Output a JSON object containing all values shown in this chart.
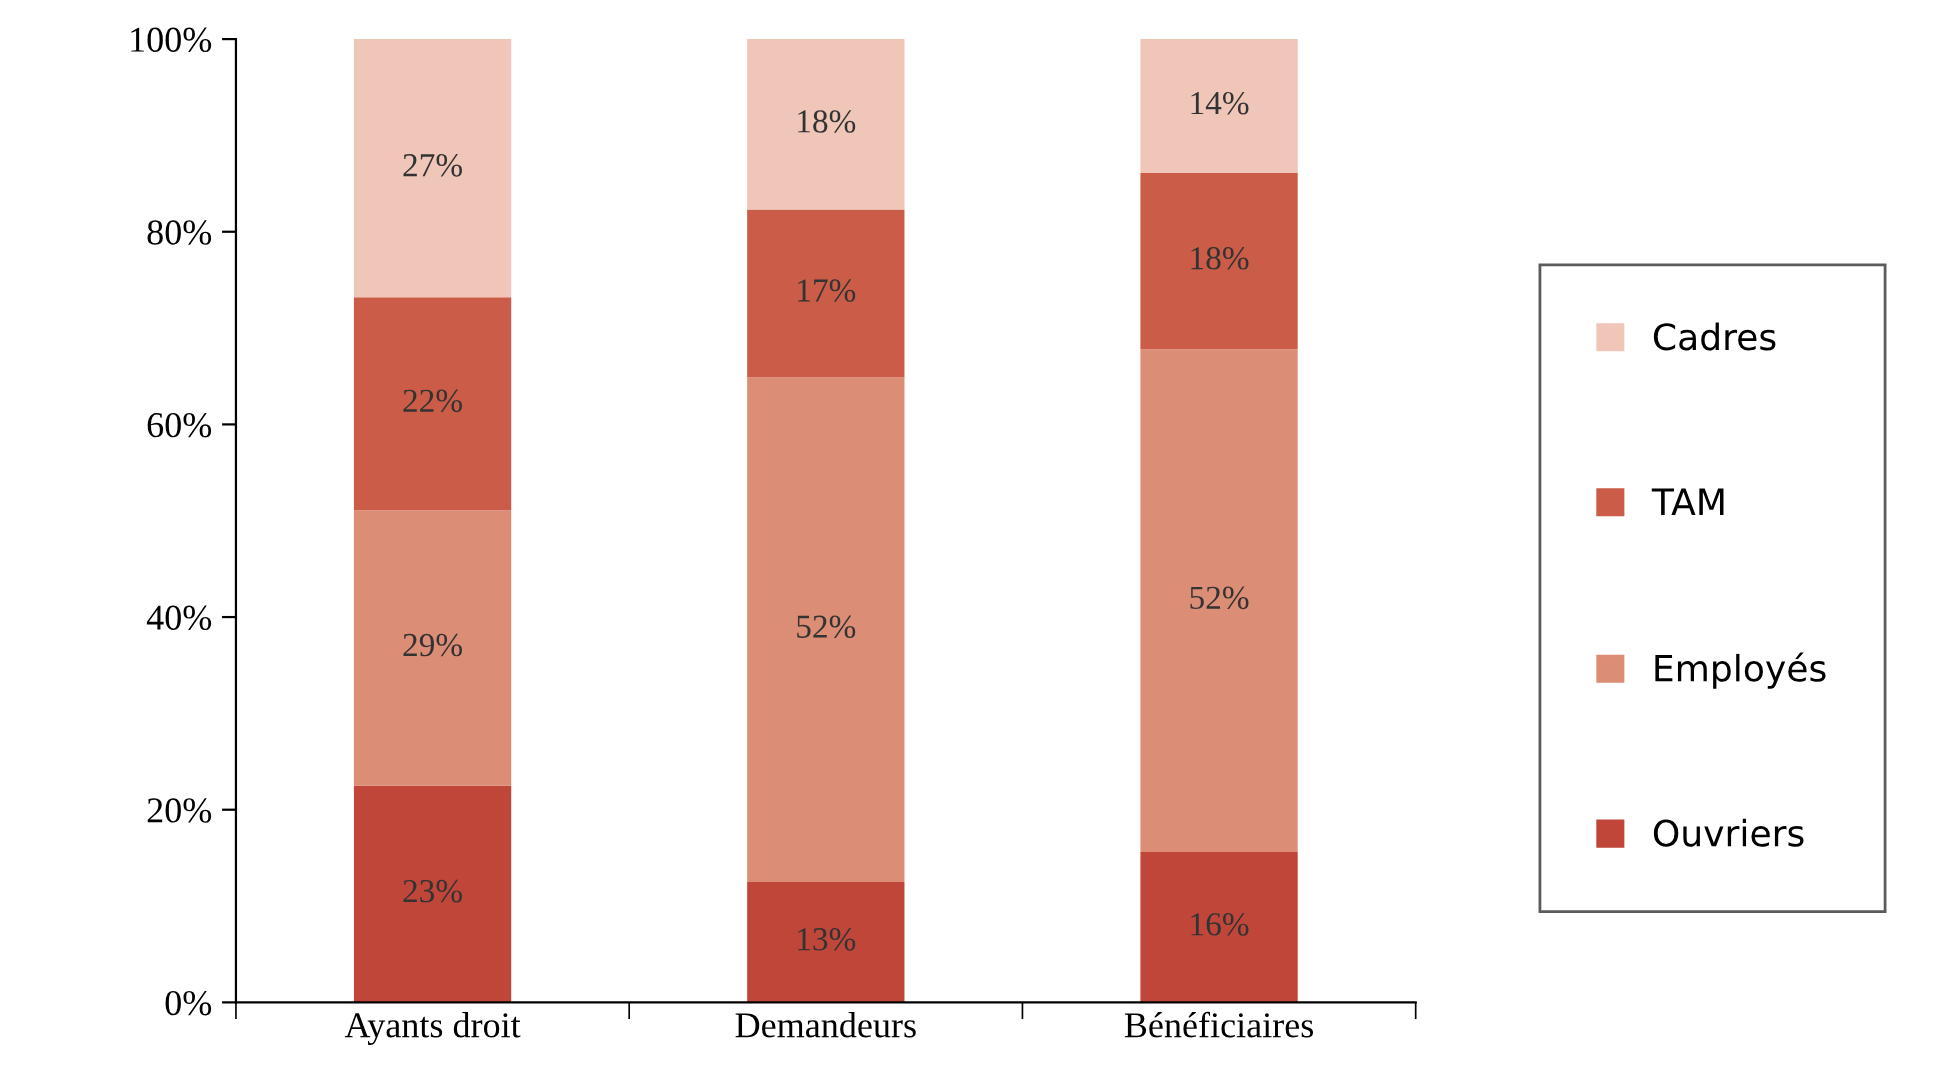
{
  "chart_data": {
    "type": "bar",
    "stacked": true,
    "categories": [
      "Ayants droit",
      "Demandeurs",
      "Bénéficiaires"
    ],
    "series": [
      {
        "name": "Ouvriers",
        "color": "#c0463a",
        "values": [
          22.5,
          12.5,
          15.6
        ],
        "value_labels": [
          "23%",
          "13%",
          "16%"
        ]
      },
      {
        "name": "Employés",
        "color": "#dc8d75",
        "values": [
          28.6,
          52.4,
          52.2
        ],
        "value_labels": [
          "29%",
          "52%",
          "52%"
        ]
      },
      {
        "name": "TAM",
        "color": "#cb5c48",
        "values": [
          22.1,
          17.4,
          18.3
        ],
        "value_labels": [
          "22%",
          "17%",
          "18%"
        ]
      },
      {
        "name": "Cadres",
        "color": "#efc6b8",
        "values": [
          26.8,
          17.7,
          13.9
        ],
        "value_labels": [
          "27%",
          "18%",
          "14%"
        ]
      }
    ],
    "ylim": [
      0,
      100
    ],
    "yticks": [
      {
        "value": 0,
        "label": "0%"
      },
      {
        "value": 20,
        "label": "20%"
      },
      {
        "value": 40,
        "label": "40%"
      },
      {
        "value": 60,
        "label": "60%"
      },
      {
        "value": 80,
        "label": "80%"
      },
      {
        "value": 100,
        "label": "100%"
      }
    ],
    "grid": false,
    "legend": "right"
  }
}
